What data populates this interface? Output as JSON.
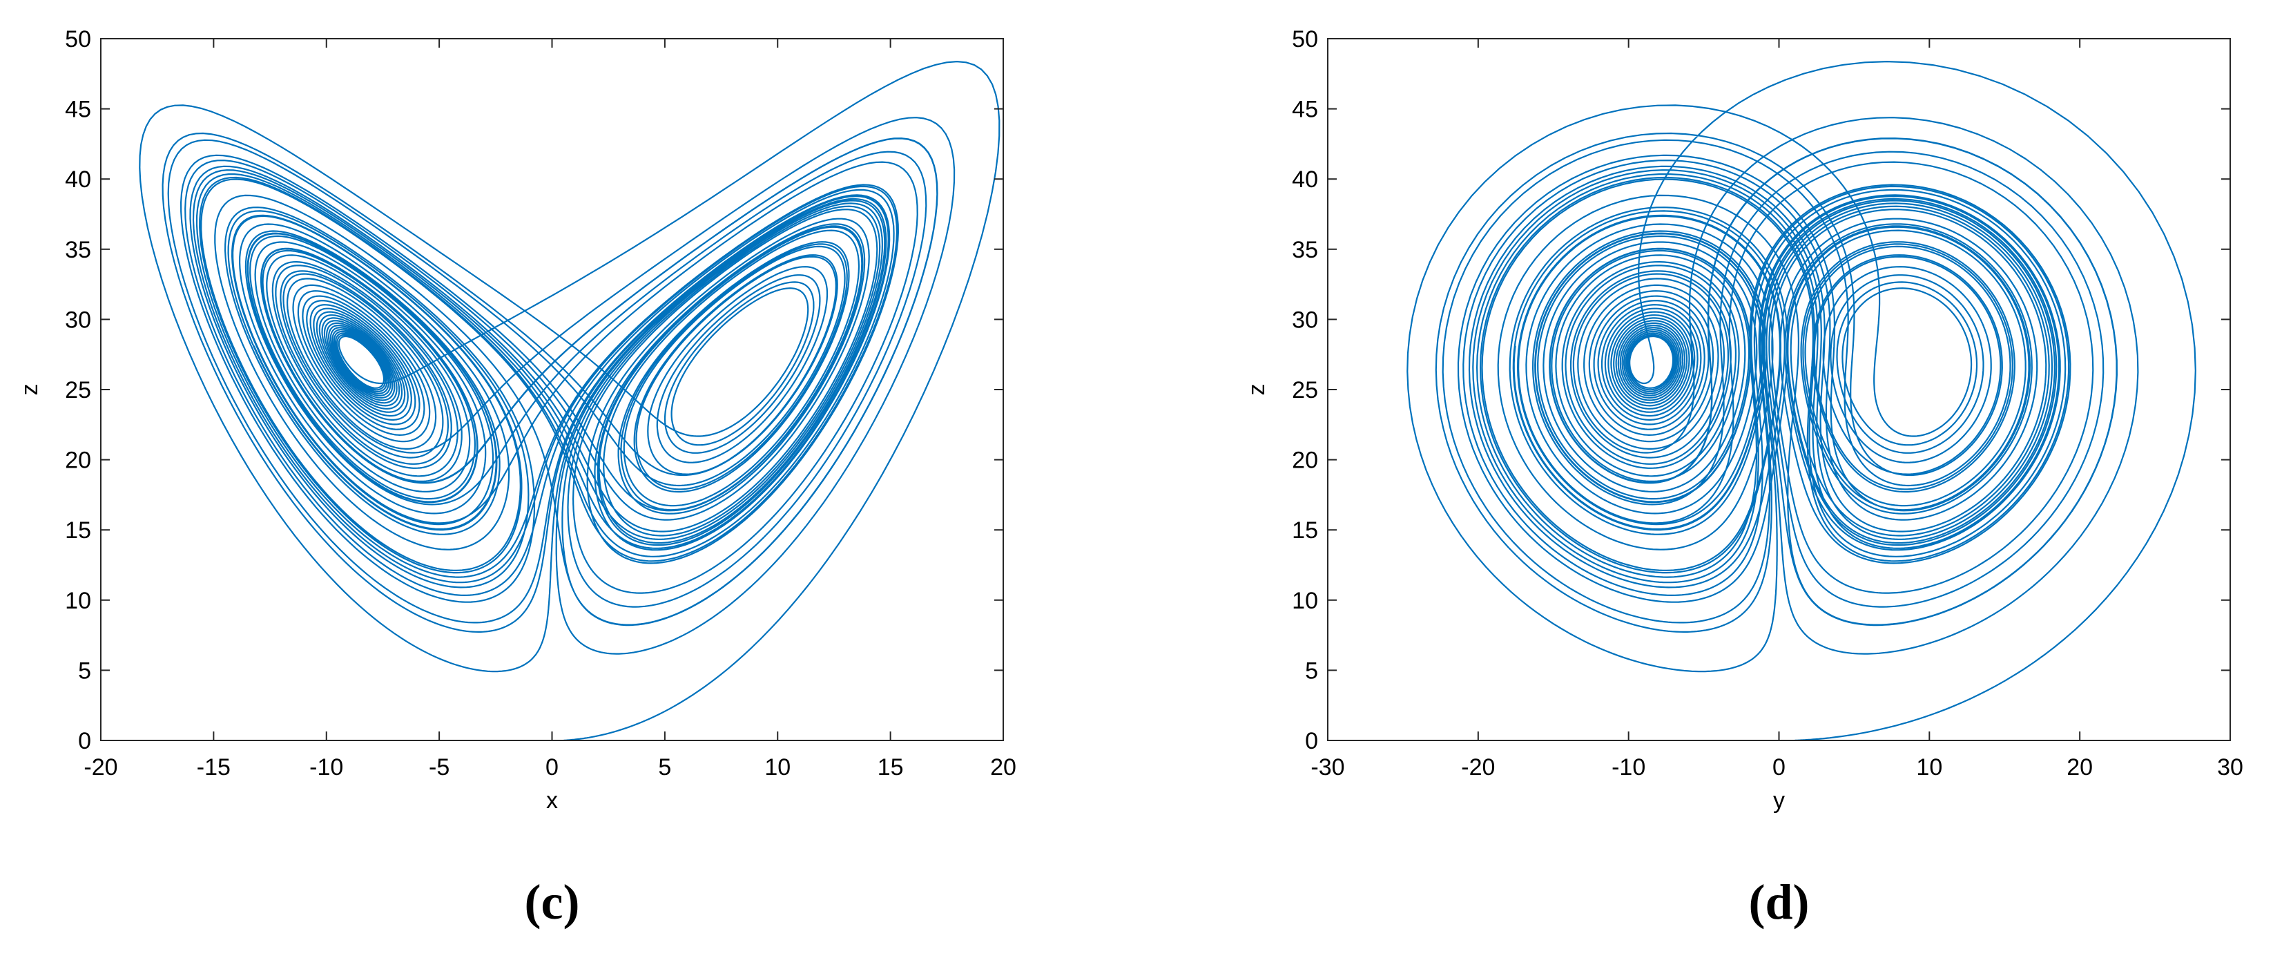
{
  "chart_data": [
    {
      "type": "line",
      "panel_label": "(c)",
      "xlabel": "x",
      "ylabel": "z",
      "xlim": [
        -20,
        20
      ],
      "ylim": [
        0,
        50
      ],
      "xticks": [
        -20,
        -15,
        -10,
        -5,
        0,
        5,
        10,
        15,
        20
      ],
      "yticks": [
        0,
        5,
        10,
        15,
        20,
        25,
        30,
        35,
        40,
        45,
        50
      ],
      "grid": false,
      "line_color": "#0072BD",
      "series": [
        {
          "values_note": "phase-space trajectory (x, z) of the Lorenz attractor",
          "points": [
            [
              0.0,
              0.0
            ],
            [
              2.0,
              0.4
            ],
            [
              6.0,
              2.0
            ],
            [
              10.0,
              5.0
            ],
            [
              14.0,
              11.0
            ],
            [
              17.5,
              20.0
            ],
            [
              19.7,
              30.0
            ],
            [
              19.8,
              40.0
            ],
            [
              18.0,
              48.0
            ],
            [
              16.0,
              46.5
            ],
            [
              5.0,
              38.0
            ],
            [
              -5.0,
              31.0
            ],
            [
              -9.5,
              27.0
            ],
            [
              -17.8,
              40.0
            ],
            [
              -16.0,
              44.2
            ],
            [
              -14.0,
              41.0
            ],
            [
              -10.0,
              20.0
            ],
            [
              -2.6,
              5.9
            ],
            [
              0.0,
              10.0
            ],
            [
              4.0,
              27.0
            ],
            [
              10.0,
              33.0
            ],
            [
              12.0,
              26.0
            ],
            [
              8.0,
              17.0
            ],
            [
              3.0,
              5.3
            ]
          ]
        }
      ]
    },
    {
      "type": "line",
      "panel_label": "(d)",
      "xlabel": "y",
      "ylabel": "z",
      "xlim": [
        -30,
        30
      ],
      "ylim": [
        0,
        50
      ],
      "xticks": [
        -30,
        -20,
        -10,
        0,
        10,
        20,
        30
      ],
      "yticks": [
        0,
        5,
        10,
        15,
        20,
        25,
        30,
        35,
        40,
        45,
        50
      ],
      "grid": false,
      "line_color": "#0072BD",
      "series": [
        {
          "values_note": "phase-space trajectory (y, z) of the Lorenz attractor",
          "points": [
            [
              0.0,
              0.0
            ],
            [
              10.0,
              3.0
            ],
            [
              20.0,
              10.0
            ],
            [
              27.6,
              26.0
            ],
            [
              22.0,
              42.0
            ],
            [
              8.0,
              48.0
            ],
            [
              -8.0,
              44.2
            ],
            [
              -24.0,
              26.5
            ],
            [
              -18.0,
              12.0
            ],
            [
              -5.0,
              5.8
            ],
            [
              0.0,
              10.0
            ],
            [
              8.0,
              5.3
            ],
            [
              24.0,
              26.0
            ],
            [
              8.0,
              44.5
            ],
            [
              -8.5,
              27.0
            ]
          ]
        }
      ]
    }
  ]
}
